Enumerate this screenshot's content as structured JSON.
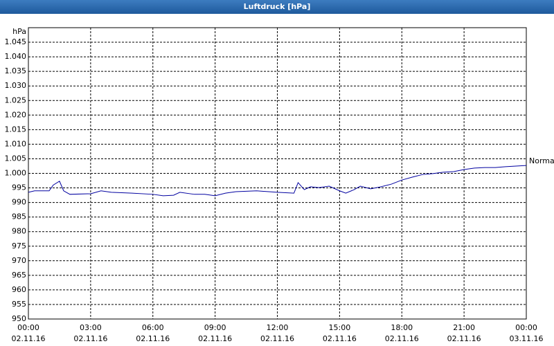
{
  "chart_data": {
    "type": "line",
    "title": "Luftdruck [hPa]",
    "y_label": "hPa",
    "x": [
      0,
      0.3,
      1.0,
      1.2,
      1.5,
      1.7,
      2.0,
      3,
      3.5,
      4,
      5,
      6,
      6.5,
      7,
      7.3,
      8,
      8.5,
      9,
      9.5,
      10,
      11,
      12,
      12.8,
      13,
      13.3,
      13.6,
      14,
      14.5,
      15,
      15.3,
      15.7,
      16,
      16.5,
      17,
      17.5,
      18,
      18.5,
      19,
      19.5,
      20,
      20.5,
      21,
      21.5,
      22,
      22.5,
      23,
      23.5,
      24
    ],
    "series": [
      {
        "name": "Normal",
        "color": "#0000a0",
        "values": [
          993.5,
          994,
          994,
          996,
          997.3,
          994,
          992.8,
          993,
          994,
          993.5,
          993.2,
          992.8,
          992.3,
          992.5,
          993.5,
          992.8,
          992.8,
          992.3,
          993.2,
          993.7,
          994,
          993.5,
          993.2,
          996.8,
          994.4,
          995.4,
          995.1,
          995.6,
          994,
          993.2,
          994.4,
          995.6,
          994.7,
          995.4,
          996.3,
          997.7,
          998.7,
          999.6,
          999.9,
          1000.4,
          1000.6,
          1001.3,
          1001.8,
          1002,
          1002,
          1002.3,
          1002.5,
          1002.7
        ]
      }
    ],
    "xlim": [
      0,
      24
    ],
    "xticks": [
      {
        "value": 0,
        "label": "00:00\n02.11.16"
      },
      {
        "value": 3,
        "label": "03:00\n02.11.16"
      },
      {
        "value": 6,
        "label": "06:00\n02.11.16"
      },
      {
        "value": 9,
        "label": "09:00\n02.11.16"
      },
      {
        "value": 12,
        "label": "12:00\n02.11.16"
      },
      {
        "value": 15,
        "label": "15:00\n02.11.16"
      },
      {
        "value": 18,
        "label": "18:00\n02.11.16"
      },
      {
        "value": 21,
        "label": "21:00\n02.11.16"
      },
      {
        "value": 24,
        "label": "00:00\n03.11.16"
      }
    ],
    "ylim": [
      950,
      1050
    ],
    "yticks": [
      950,
      955,
      960,
      965,
      970,
      975,
      980,
      985,
      990,
      995,
      {
        "value": 1000,
        "label": "1.000"
      },
      {
        "value": 1005,
        "label": "1.005"
      },
      {
        "value": 1010,
        "label": "1.010"
      },
      {
        "value": 1015,
        "label": "1.015"
      },
      {
        "value": 1020,
        "label": "1.020"
      },
      {
        "value": 1025,
        "label": "1.025"
      },
      {
        "value": 1030,
        "label": "1.030"
      },
      {
        "value": 1035,
        "label": "1.035"
      },
      {
        "value": 1040,
        "label": "1.040"
      },
      {
        "value": 1045,
        "label": "1.045"
      }
    ],
    "grid": true
  }
}
